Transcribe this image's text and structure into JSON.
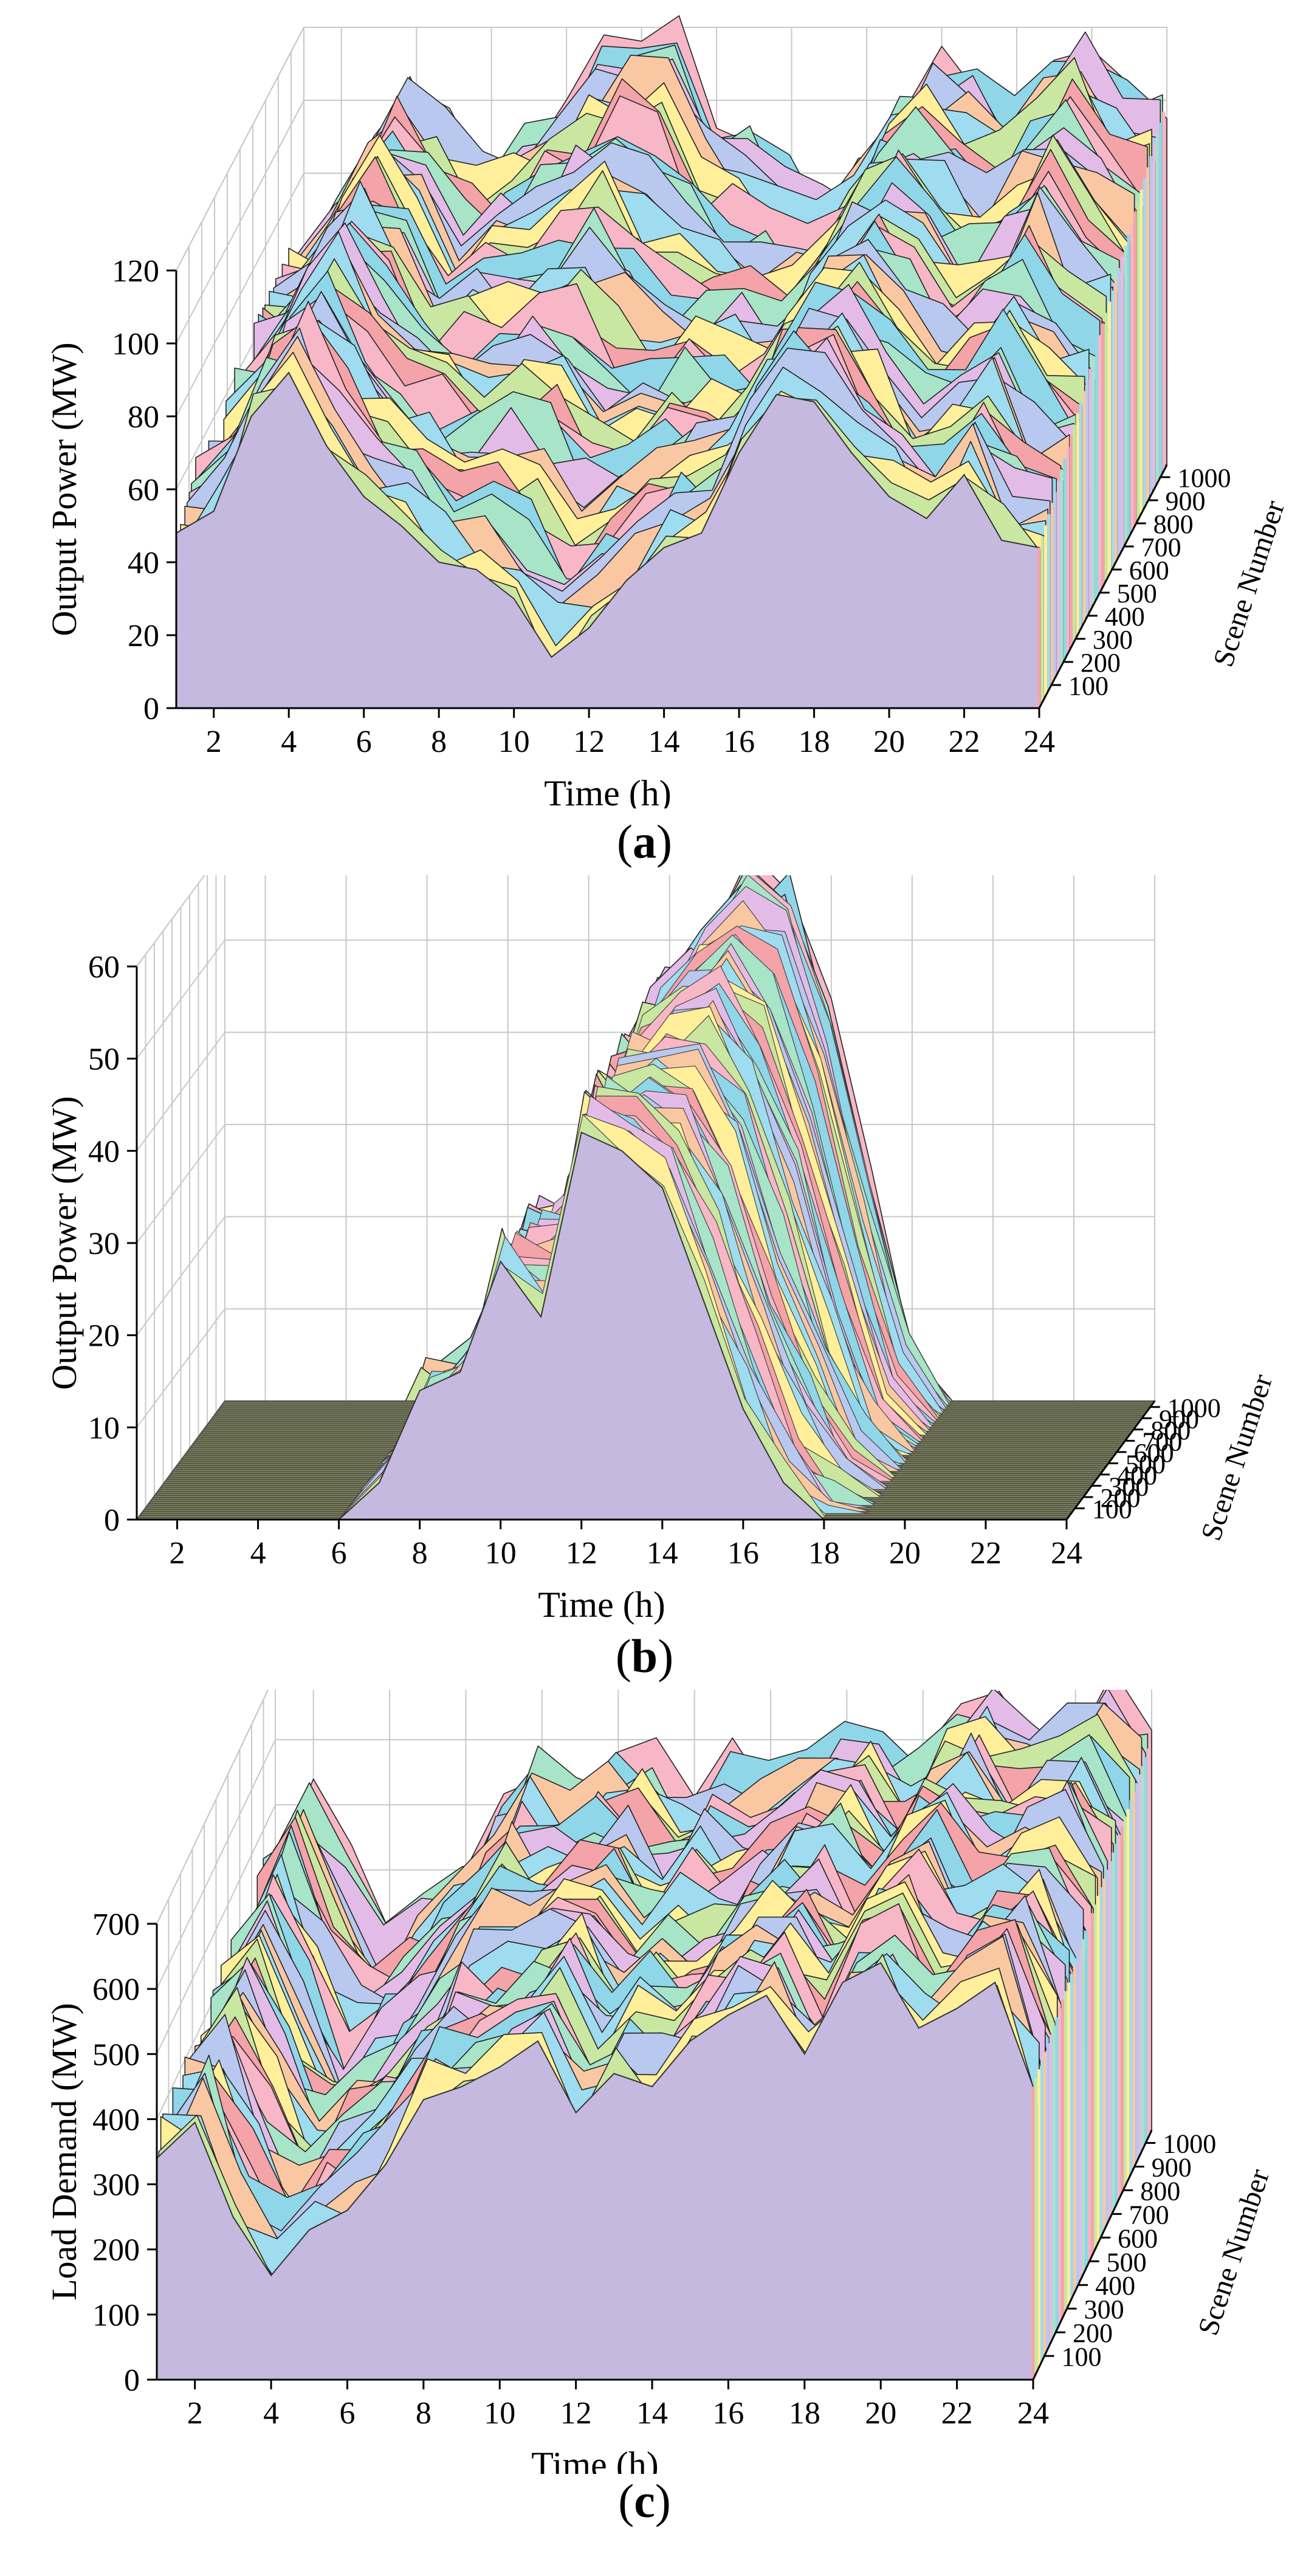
{
  "chart_data": [
    {
      "type": "area",
      "panel_label": "a",
      "caption_open": "(",
      "caption_close": ")",
      "xlabel": "Time (h)",
      "ylabel": "Output Power (MW)",
      "zlabel": "Scene Number",
      "xlim": [
        1,
        24
      ],
      "ylim": [
        0,
        120
      ],
      "zlim": [
        1,
        1000
      ],
      "x_ticks": [
        "2",
        "4",
        "6",
        "8",
        "10",
        "12",
        "14",
        "16",
        "18",
        "20",
        "22",
        "24"
      ],
      "y_ticks": [
        "0",
        "20",
        "40",
        "60",
        "80",
        "100",
        "120"
      ],
      "z_ticks": [
        "100",
        "200",
        "300",
        "400",
        "500",
        "600",
        "700",
        "800",
        "900",
        "1000"
      ],
      "x": [
        1,
        2,
        3,
        4,
        5,
        6,
        7,
        8,
        9,
        10,
        11,
        12,
        13,
        14,
        15,
        16,
        17,
        18,
        19,
        20,
        21,
        22,
        23,
        24
      ],
      "front_series": [
        48,
        54,
        80,
        92,
        72,
        58,
        50,
        40,
        38,
        30,
        14,
        22,
        35,
        44,
        48,
        70,
        86,
        84,
        70,
        58,
        52,
        64,
        46,
        44
      ],
      "back_series": [
        62,
        70,
        88,
        105,
        96,
        85,
        90,
        100,
        112,
        122,
        118,
        98,
        90,
        80,
        74,
        82,
        96,
        110,
        104,
        98,
        110,
        120,
        106,
        100
      ],
      "scene_palette": [
        "#f4a3a8",
        "#c9e7a0",
        "#ffef9a",
        "#9fdcef",
        "#f9c8a2",
        "#b9c8ee",
        "#e2bce6",
        "#a7e4c8",
        "#8fd6e8",
        "#f7b7c7"
      ],
      "base_color": "#c6b9df"
    },
    {
      "type": "area",
      "panel_label": "b",
      "caption_open": "(",
      "caption_close": ")",
      "xlabel": "Time (h)",
      "ylabel": "Output Power (MW)",
      "zlabel": "Scene Number",
      "xlim": [
        1,
        24
      ],
      "ylim": [
        0,
        60
      ],
      "zlim": [
        1,
        1000
      ],
      "x_ticks": [
        "2",
        "4",
        "6",
        "8",
        "10",
        "12",
        "14",
        "16",
        "18",
        "20",
        "22",
        "24"
      ],
      "y_ticks": [
        "0",
        "10",
        "20",
        "30",
        "40",
        "50",
        "60"
      ],
      "z_ticks": [
        "100",
        "200",
        "300",
        "400",
        "500",
        "600",
        "700",
        "800",
        "900",
        "1000"
      ],
      "x": [
        1,
        2,
        3,
        4,
        5,
        6,
        7,
        8,
        9,
        10,
        11,
        12,
        13,
        14,
        15,
        16,
        17,
        18,
        19,
        20,
        21,
        22,
        23,
        24
      ],
      "front_series": [
        0,
        0,
        0,
        0,
        0,
        0,
        4,
        14,
        16,
        28,
        22,
        42,
        40,
        36,
        24,
        12,
        4,
        0,
        0,
        0,
        0,
        0,
        0,
        0
      ],
      "back_series": [
        0,
        0,
        0,
        0,
        0,
        0,
        0,
        0,
        8,
        22,
        36,
        44,
        50,
        56,
        54,
        40,
        22,
        6,
        0,
        0,
        0,
        0,
        0,
        0
      ],
      "scene_palette": [
        "#f4a3a8",
        "#c9e7a0",
        "#ffef9a",
        "#9fdcef",
        "#f9c8a2",
        "#b9c8ee",
        "#e2bce6",
        "#a7e4c8",
        "#8fd6e8",
        "#f7b7c7"
      ],
      "base_color": "#c6b9df",
      "floor_color": "#7c8158"
    },
    {
      "type": "area",
      "panel_label": "c",
      "caption_open": "(",
      "caption_close": ")",
      "xlabel": "Time (h)",
      "ylabel": "Load Demand (MW)",
      "zlabel": "Scene Number",
      "xlim": [
        1,
        24
      ],
      "ylim": [
        0,
        700
      ],
      "zlim": [
        1,
        1000
      ],
      "x_ticks": [
        "2",
        "4",
        "6",
        "8",
        "10",
        "12",
        "14",
        "16",
        "18",
        "20",
        "22",
        "24"
      ],
      "y_ticks": [
        "0",
        "100",
        "200",
        "300",
        "400",
        "500",
        "600",
        "700"
      ],
      "z_ticks": [
        "100",
        "200",
        "300",
        "400",
        "500",
        "600",
        "700",
        "800",
        "900",
        "1000"
      ],
      "x": [
        1,
        2,
        3,
        4,
        5,
        6,
        7,
        8,
        9,
        10,
        11,
        12,
        13,
        14,
        15,
        16,
        17,
        18,
        19,
        20,
        21,
        22,
        23,
        24
      ],
      "front_series": [
        340,
        395,
        250,
        160,
        230,
        260,
        330,
        430,
        450,
        480,
        520,
        410,
        470,
        450,
        520,
        560,
        590,
        500,
        610,
        640,
        540,
        570,
        610,
        450
      ],
      "back_series": [
        420,
        520,
        420,
        300,
        340,
        400,
        480,
        560,
        520,
        560,
        560,
        500,
        560,
        540,
        560,
        600,
        600,
        560,
        620,
        660,
        600,
        640,
        660,
        600
      ],
      "scene_palette": [
        "#f4a3a8",
        "#c9e7a0",
        "#ffef9a",
        "#9fdcef",
        "#f9c8a2",
        "#b9c8ee",
        "#e2bce6",
        "#a7e4c8",
        "#8fd6e8",
        "#f7b7c7"
      ],
      "base_color": "#c6b9df"
    }
  ]
}
